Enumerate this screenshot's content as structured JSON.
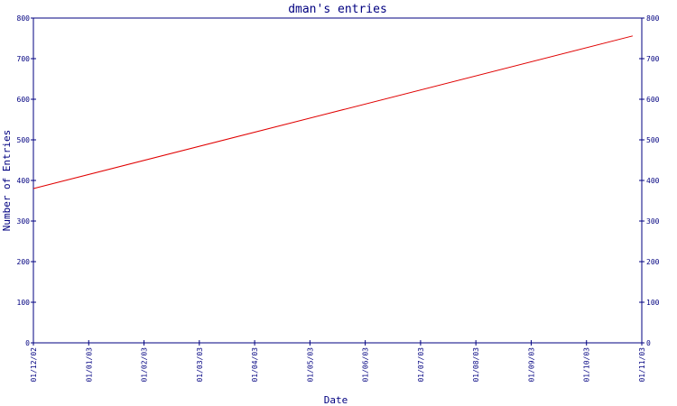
{
  "chart_data": {
    "type": "line",
    "title": "dman's entries",
    "xlabel": "Date",
    "ylabel": "Number of Entries",
    "x_ticks": [
      "01/12/02",
      "01/01/03",
      "01/02/03",
      "01/03/03",
      "01/04/03",
      "01/05/03",
      "01/06/03",
      "01/07/03",
      "01/08/03",
      "01/09/03",
      "01/10/03",
      "01/11/03"
    ],
    "y_ticks": [
      0,
      100,
      200,
      300,
      400,
      500,
      600,
      700,
      800
    ],
    "ylim": [
      0,
      800
    ],
    "xlim": [
      "2002-12-01",
      "2003-11-01"
    ],
    "grid": false,
    "right_axis": true,
    "series": [
      {
        "color": "#e00000",
        "points": [
          {
            "x": "2002-12-01",
            "y": 380
          },
          {
            "x": "2003-10-27",
            "y": 756
          }
        ]
      }
    ],
    "colors": {
      "axis": "#000080",
      "title": "#000080",
      "line": "#e00000"
    }
  }
}
